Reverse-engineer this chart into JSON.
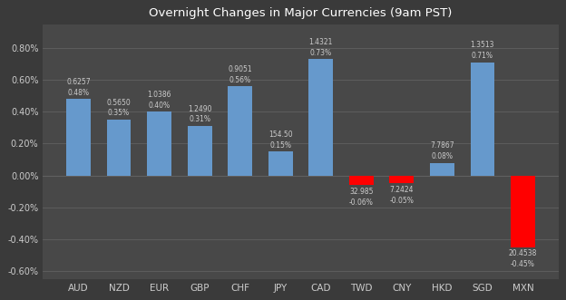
{
  "title": "Overnight Changes in Major Currencies (9am PST)",
  "categories": [
    "AUD",
    "NZD",
    "EUR",
    "GBP",
    "CHF",
    "JPY",
    "CAD",
    "TWD",
    "CNY",
    "HKD",
    "SGD",
    "MXN"
  ],
  "pct_values": [
    0.48,
    0.35,
    0.4,
    0.31,
    0.56,
    0.15,
    0.73,
    -0.06,
    -0.05,
    0.08,
    0.71,
    -0.45
  ],
  "price_labels": [
    "0.6257",
    "0.5650",
    "1.0386",
    "1.2490",
    "0.9051",
    "154.50",
    "1.4321",
    "32.985",
    "7.2424",
    "7.7867",
    "1.3513",
    "20.4538"
  ],
  "pct_labels": [
    "0.48%",
    "0.35%",
    "0.40%",
    "0.31%",
    "0.56%",
    "0.15%",
    "0.73%",
    "-0.06%",
    "-0.05%",
    "0.08%",
    "0.71%",
    "-0.45%"
  ],
  "bar_color_positive": "#6699CC",
  "bar_color_negative": "#FF0000",
  "background_color": "#3A3A3A",
  "axes_facecolor": "#484848",
  "text_color": "#CCCCCC",
  "grid_color": "#606060",
  "title_color": "#FFFFFF",
  "ylim_low": -0.65,
  "ylim_high": 0.95,
  "yticks": [
    -0.6,
    -0.4,
    -0.2,
    0.0,
    0.2,
    0.4,
    0.6,
    0.8
  ]
}
